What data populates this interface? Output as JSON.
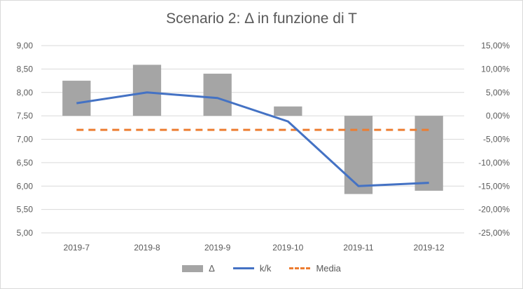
{
  "chart_data": {
    "type": "bar",
    "title": "Scenario 2: Δ in funzione di T",
    "categories": [
      "2019-7",
      "2019-8",
      "2019-9",
      "2019-10",
      "2019-11",
      "2019-12"
    ],
    "series": [
      {
        "name": "Δ",
        "type": "bar",
        "axis": "right",
        "values": [
          7.5,
          10.9,
          9.0,
          2.0,
          -16.7,
          -16.0
        ],
        "unit": "%"
      },
      {
        "name": "k/k",
        "type": "line",
        "axis": "left",
        "values": [
          7.77,
          8.0,
          7.88,
          7.38,
          6.0,
          6.07
        ]
      },
      {
        "name": "Media",
        "type": "line",
        "style": "dashed",
        "axis": "right",
        "values": [
          -3.0,
          -3.0,
          -3.0,
          -3.0,
          -3.0,
          -3.0
        ],
        "unit": "%"
      }
    ],
    "y_left": {
      "ylim": [
        5.0,
        9.0
      ],
      "ticks": [
        "9,00",
        "8,50",
        "8,00",
        "7,50",
        "7,00",
        "6,50",
        "6,00",
        "5,50",
        "5,00"
      ]
    },
    "y_right": {
      "ylim": [
        -25,
        15
      ],
      "ticks": [
        "15,00%",
        "10,00%",
        "5,00%",
        "0,00%",
        "-5,00%",
        "-10,00%",
        "-15,00%",
        "-20,00%",
        "-25,00%"
      ]
    },
    "grid": true,
    "legend_position": "bottom",
    "colors": {
      "bar": "#a5a5a5",
      "kk": "#4472c4",
      "media": "#ed7d31",
      "grid": "#d9d9d9",
      "text": "#595959"
    }
  }
}
